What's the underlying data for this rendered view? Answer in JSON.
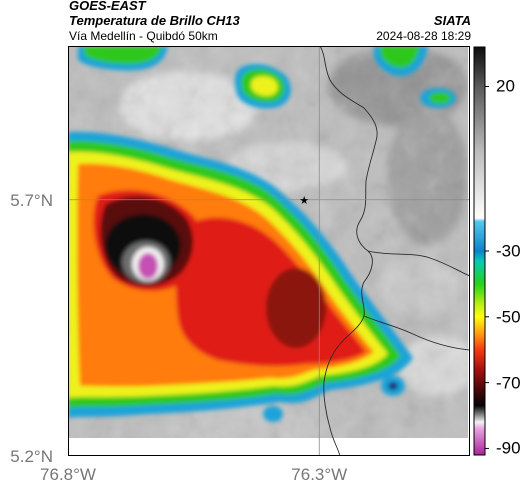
{
  "header": {
    "title_line1": "GOES-EAST",
    "title_line2": "Temperatura de Brillo CH13",
    "organization": "SIATA",
    "route": "Vía Medellín - Quibdó 50km",
    "datetime": "2024-08-28 18:29"
  },
  "map": {
    "extent": {
      "lon_min": -76.8,
      "lon_max": -76.0,
      "lat_min": 5.2,
      "lat_max": 6.0
    },
    "crosshair": {
      "lon": -76.3,
      "lat": 5.7
    },
    "marker": {
      "lon": -76.33,
      "lat": 5.7,
      "icon": "star-icon"
    },
    "lat_ticks": [
      {
        "value": 5.7,
        "label": "5.7°N"
      },
      {
        "value": 5.2,
        "label": "5.2°N"
      }
    ],
    "lon_ticks": [
      {
        "value": -76.8,
        "label": "76.8°W"
      },
      {
        "value": -76.3,
        "label": "76.3°W"
      }
    ],
    "colors": {
      "warm_gray": "#b8b8b8",
      "cyan": "#1aa3d9",
      "green": "#2fc81f",
      "yellow": "#eef21c",
      "orange": "#ff7c11",
      "red": "#e01a14",
      "dark_red": "#5a0d0a",
      "black": "#111111",
      "magenta": "#c54fb3"
    }
  },
  "colorbar": {
    "range": [
      -92,
      32
    ],
    "ticks": [
      {
        "value": 20,
        "label": "20"
      },
      {
        "value": -30,
        "label": "-30"
      },
      {
        "value": -50,
        "label": "-50"
      },
      {
        "value": -70,
        "label": "-70"
      },
      {
        "value": -90,
        "label": "-90"
      }
    ],
    "stops": [
      {
        "value": 32,
        "color": "#0c0c0c"
      },
      {
        "value": 20,
        "color": "#5a5a5a"
      },
      {
        "value": 0,
        "color": "#bdbdbd"
      },
      {
        "value": -20,
        "color": "#ffffff"
      },
      {
        "value": -21,
        "color": "#54c8ec"
      },
      {
        "value": -30,
        "color": "#0f82c9"
      },
      {
        "value": -33,
        "color": "#08c8b8"
      },
      {
        "value": -40,
        "color": "#24d21c"
      },
      {
        "value": -46,
        "color": "#b5ef14"
      },
      {
        "value": -50,
        "color": "#ffff10"
      },
      {
        "value": -55,
        "color": "#ff9e12"
      },
      {
        "value": -60,
        "color": "#f23c14"
      },
      {
        "value": -66,
        "color": "#a81010"
      },
      {
        "value": -72,
        "color": "#4a0808"
      },
      {
        "value": -77,
        "color": "#050505"
      },
      {
        "value": -80,
        "color": "#8f8f8f"
      },
      {
        "value": -82,
        "color": "#f2f2f2"
      },
      {
        "value": -84,
        "color": "#e8a2de"
      },
      {
        "value": -92,
        "color": "#a8259a"
      }
    ]
  }
}
